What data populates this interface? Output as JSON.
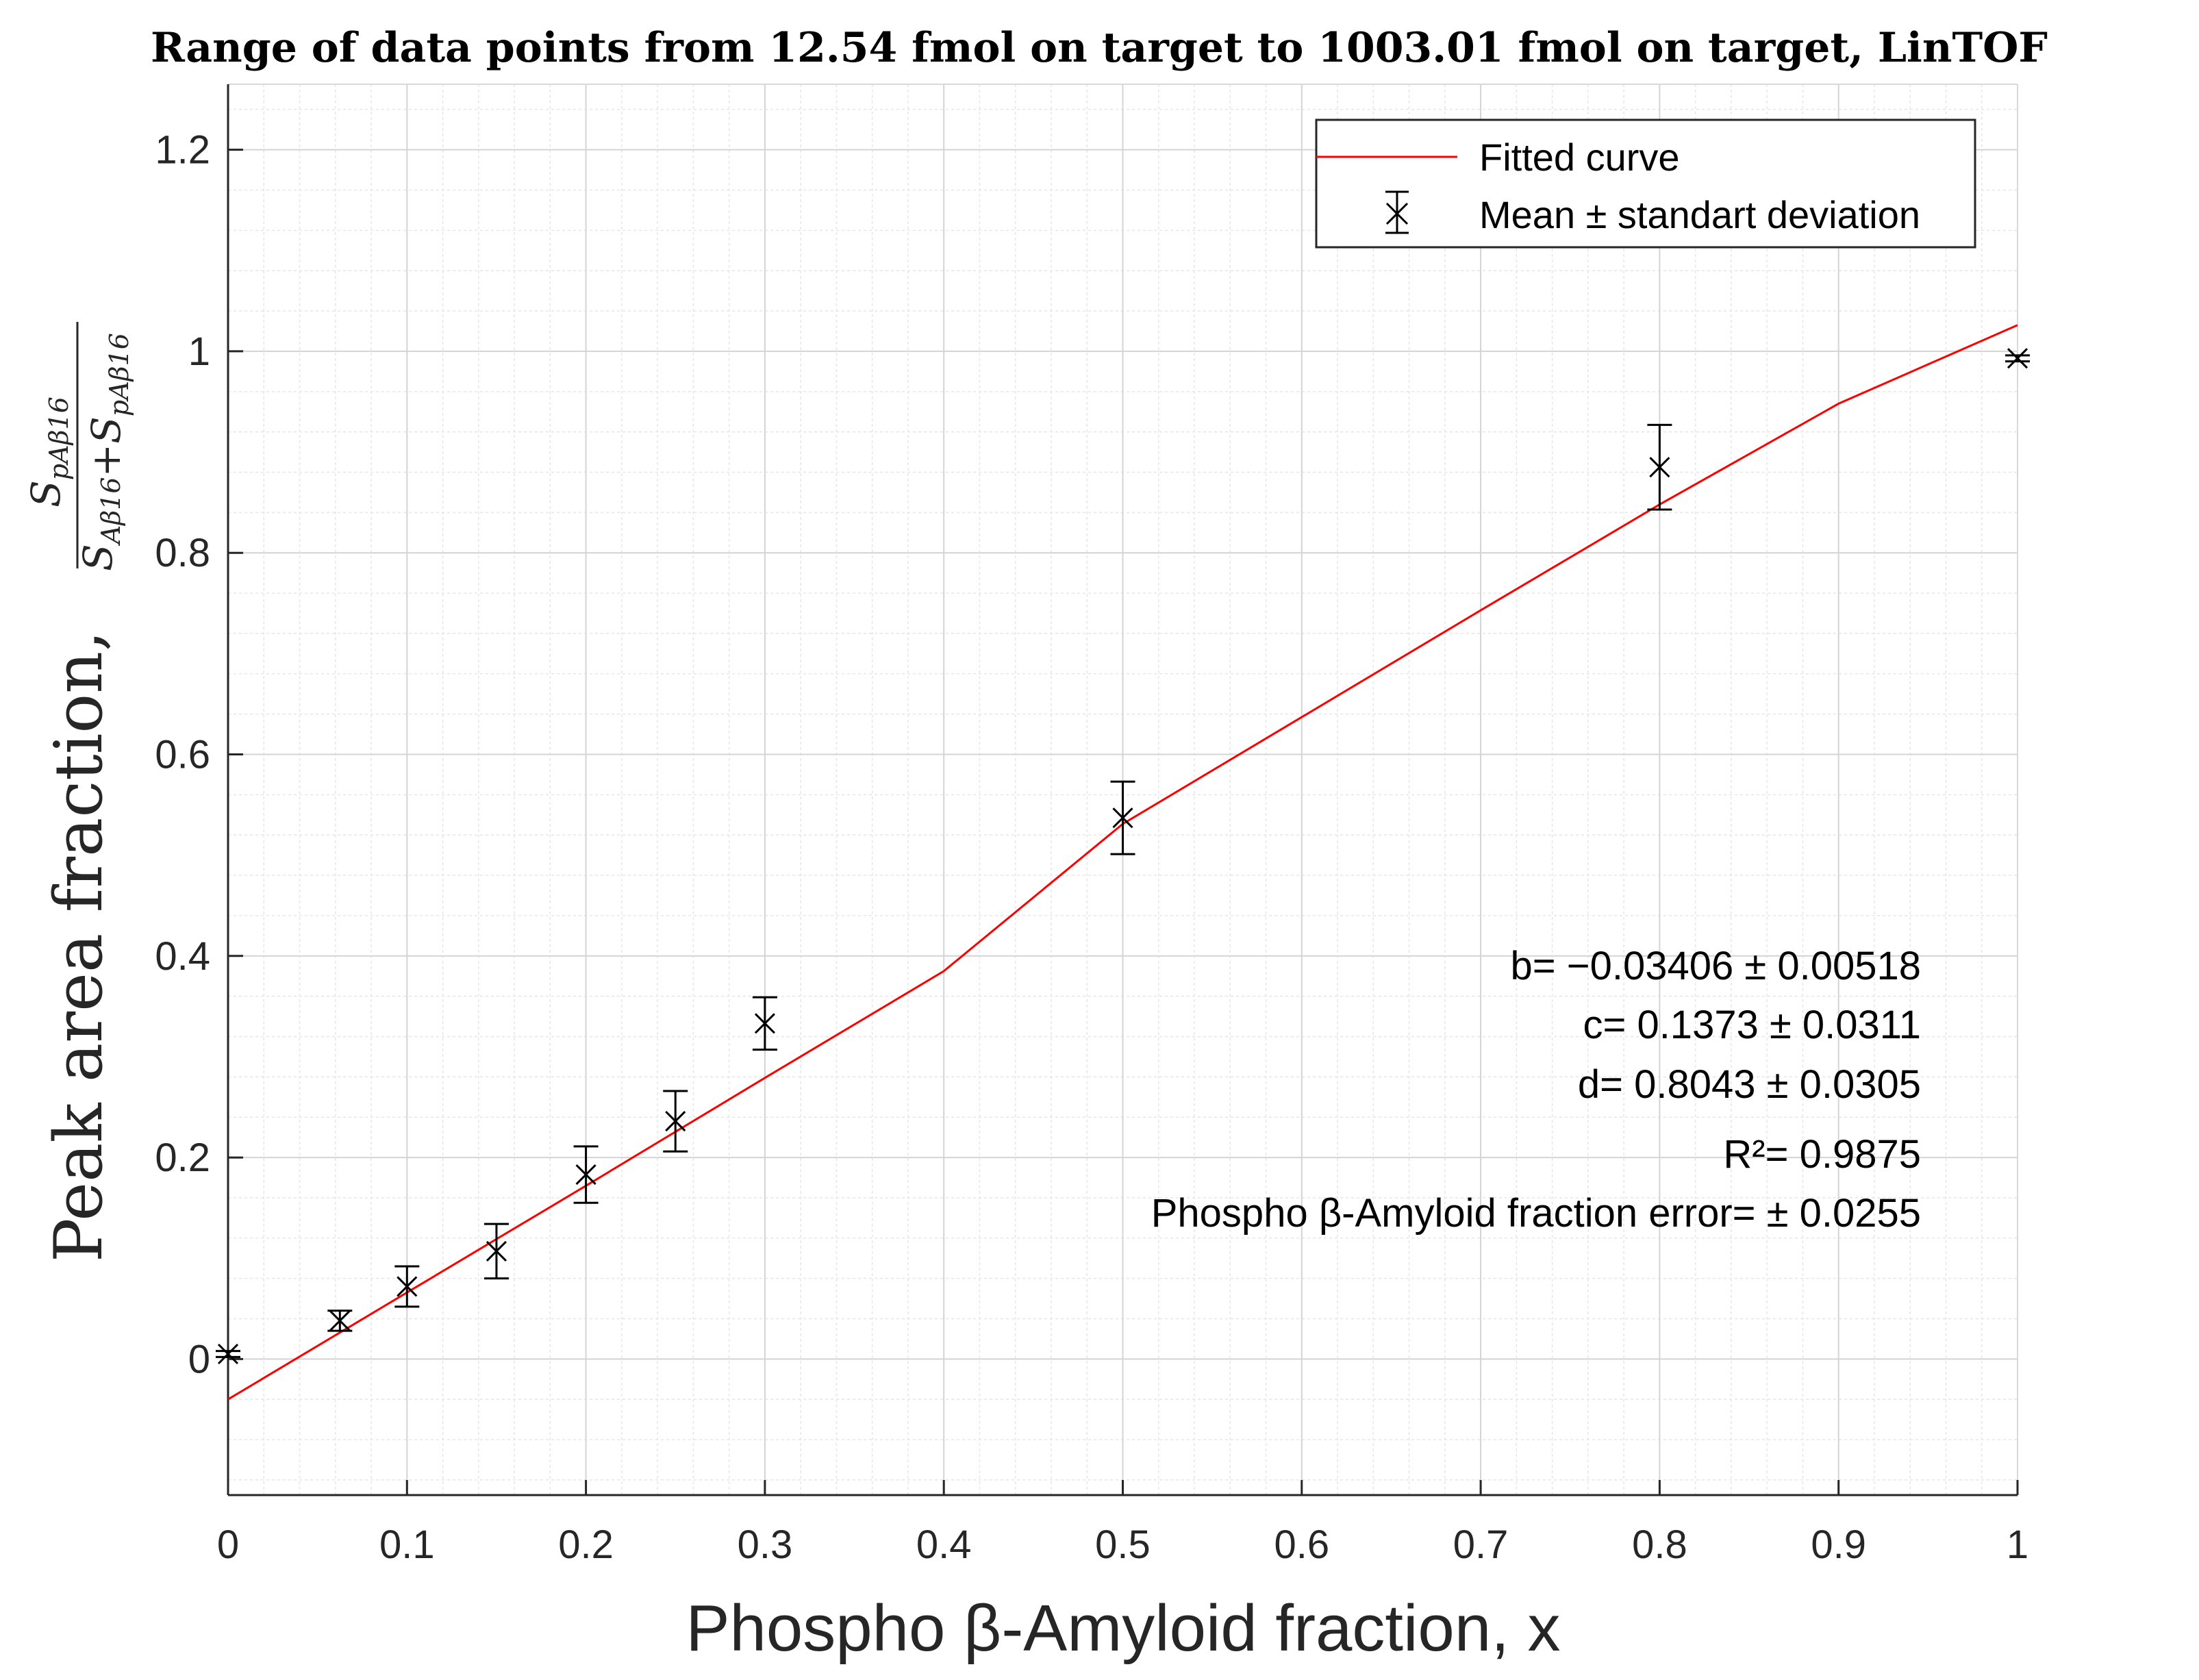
{
  "chart_data": {
    "type": "scatter",
    "title": "Range of data points from 12.54 fmol on target to 1003.01 fmol on target, LinTOF",
    "xlabel": "Phospho β-Amyloid fraction, x",
    "ylabel": "Peak area fraction,",
    "ylabel_fraction": {
      "numerator": "S_pAβ16",
      "denominator": "S_Aβ16+S_pAβ16"
    },
    "xlim": [
      0,
      1
    ],
    "ylim": [
      -0.135,
      1.265
    ],
    "xticks": [
      0,
      0.1,
      0.2,
      0.3,
      0.4,
      0.5,
      0.6,
      0.7,
      0.8,
      0.9,
      1
    ],
    "xtick_labels": [
      "0",
      "0.1",
      "0.2",
      "0.3",
      "0.4",
      "0.5",
      "0.6",
      "0.7",
      "0.8",
      "0.9",
      "1"
    ],
    "yticks": [
      0,
      0.2,
      0.4,
      0.6,
      0.8,
      1,
      1.2
    ],
    "ytick_labels": [
      "0",
      "0.2",
      "0.4",
      "0.6",
      "0.8",
      "1",
      "1.2"
    ],
    "grid": true,
    "minor_grid": true,
    "legend_position": "top-right",
    "series": [
      {
        "name": "Fitted curve",
        "kind": "line",
        "color": "#ff0000",
        "x": [
          0,
          0.1,
          0.2,
          0.3,
          0.4,
          0.5,
          0.6,
          0.7,
          0.8,
          0.9,
          1
        ],
        "y": [
          -0.04,
          0.066,
          0.172,
          0.279,
          0.385,
          0.531,
          0.637,
          0.743,
          0.848,
          0.948,
          1.026
        ]
      },
      {
        "name": "Mean ± standart deviation",
        "kind": "errorbar",
        "color": "#000000",
        "x": [
          0,
          0.0625,
          0.1,
          0.15,
          0.2,
          0.25,
          0.3,
          0.5,
          0.8,
          1
        ],
        "y": [
          0.005,
          0.038,
          0.072,
          0.107,
          0.183,
          0.236,
          0.333,
          0.537,
          0.885,
          0.993
        ],
        "err": [
          0.003,
          0.01,
          0.02,
          0.027,
          0.028,
          0.03,
          0.026,
          0.036,
          0.042,
          0.003
        ]
      }
    ],
    "annotations": [
      "b= −0.03406 ± 0.00518",
      "c= 0.1373 ± 0.0311",
      "d= 0.8043 ± 0.0305",
      "R²= 0.9875",
      "Phospho β-Amyloid fraction error= ± 0.0255"
    ]
  }
}
